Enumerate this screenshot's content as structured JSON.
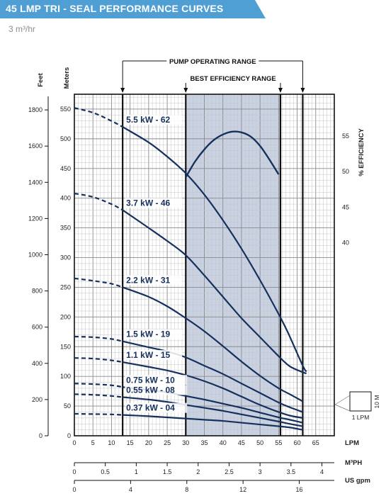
{
  "header": {
    "title": "45 LMP TRI - SEAL PERFORMANCE CURVES",
    "subtitle": "3 m³/hr",
    "banner_color": "#4f9fd4"
  },
  "chart_data": {
    "type": "line",
    "x_unit": "LPM",
    "xlim": [
      0,
      70
    ],
    "x_ticks": [
      0,
      5,
      10,
      15,
      20,
      25,
      30,
      35,
      40,
      45,
      50,
      55,
      60,
      65
    ],
    "secondary_x_axes": [
      {
        "unit": "M³PH",
        "ticks": [
          0,
          0.5,
          1,
          1.5,
          2,
          2.5,
          3,
          3.5,
          4
        ],
        "tick_labels": [
          "0",
          "0.5",
          "1",
          "1.5",
          "2",
          "2.5",
          "3",
          "3.5",
          "4"
        ]
      },
      {
        "unit": "US gpm",
        "ticks": [
          0,
          4,
          8,
          12,
          16
        ],
        "tick_labels": [
          "0",
          "4",
          "8",
          "12",
          "16"
        ]
      }
    ],
    "y_unit": "Meters",
    "ylim": [
      0,
      575
    ],
    "y_ticks": [
      0,
      50,
      100,
      150,
      200,
      250,
      300,
      350,
      400,
      450,
      500,
      550
    ],
    "secondary_y_axis": {
      "unit": "Feet",
      "ticks": [
        0,
        200,
        400,
        600,
        800,
        1000,
        1200,
        1400,
        1600,
        1800
      ]
    },
    "efficiency_axis": {
      "label": "% EFFICIENCY",
      "ticks": [
        40,
        45,
        50,
        55
      ]
    },
    "pump_operating_range": {
      "label": "PUMP OPERATING RANGE",
      "x": [
        13,
        61.5
      ]
    },
    "best_efficiency_range": {
      "label": "BEST EFFICIENCY RANGE",
      "x": [
        30,
        55.5
      ]
    },
    "grid": true,
    "curve_color": "#16305e",
    "band_color": "#c9d2e2",
    "series": [
      {
        "name": "5.5 kW - 62",
        "x": [
          0,
          5,
          10,
          13,
          20,
          25,
          30,
          35,
          40,
          45,
          50,
          55,
          57.5,
          61.5,
          62.5
        ],
        "y": [
          552,
          544,
          530,
          520,
          494,
          470,
          442,
          406,
          363,
          315,
          262,
          205,
          174,
          118,
          108
        ]
      },
      {
        "name": "3.7 kW - 46",
        "x": [
          0,
          5,
          10,
          13,
          20,
          25,
          30,
          35,
          40,
          45,
          50,
          55,
          58,
          61.5,
          62.5
        ],
        "y": [
          408,
          402,
          390,
          380,
          350,
          328,
          304,
          270,
          234,
          198,
          166,
          134,
          117,
          107,
          105
        ]
      },
      {
        "name": "2.2 kW - 31",
        "x": [
          0,
          5,
          10,
          13,
          20,
          25,
          30,
          35,
          40,
          45,
          50,
          55,
          58,
          61.5
        ],
        "y": [
          265,
          261,
          256,
          250,
          234,
          218,
          198,
          176,
          151,
          125,
          101,
          80,
          70,
          58
        ]
      },
      {
        "name": "1.5 kW - 19",
        "x": [
          0,
          5,
          10,
          13,
          20,
          25,
          30,
          35,
          40,
          45,
          50,
          55,
          58,
          61.5
        ],
        "y": [
          167,
          166,
          163,
          159,
          149,
          142,
          132,
          118,
          104,
          88,
          72,
          56,
          48,
          40
        ]
      },
      {
        "name": "1.1 kW - 15",
        "x": [
          0,
          5,
          10,
          13,
          20,
          25,
          30,
          35,
          40,
          45,
          50,
          55,
          58,
          61.5
        ],
        "y": [
          131,
          130,
          127,
          124,
          116,
          110,
          102,
          92,
          80,
          66,
          52,
          40,
          34,
          30
        ]
      },
      {
        "name": "0.75 kW - 10",
        "x": [
          0,
          5,
          10,
          13,
          20,
          25,
          30,
          35,
          40,
          45,
          50,
          55,
          58,
          61.5
        ],
        "y": [
          88,
          87,
          85,
          82,
          77,
          73,
          67,
          61,
          54,
          47,
          39,
          31,
          27,
          22
        ]
      },
      {
        "name": "0.55 kW - 08",
        "x": [
          0,
          5,
          10,
          13,
          20,
          25,
          30,
          35,
          40,
          45,
          50,
          55,
          58,
          61.5
        ],
        "y": [
          70,
          69,
          67,
          65,
          61,
          57,
          52,
          47,
          42,
          36,
          30,
          24,
          20,
          16
        ]
      },
      {
        "name": "0.37 kW - 04",
        "x": [
          0,
          5,
          10,
          13,
          20,
          25,
          30,
          35,
          40,
          45,
          50,
          55,
          58,
          61.5
        ],
        "y": [
          37,
          36.5,
          36,
          35,
          33,
          31,
          29,
          27,
          25,
          22,
          19,
          16,
          14,
          10
        ]
      }
    ],
    "efficiency_curve": {
      "x": [
        30,
        32.5,
        35,
        37.5,
        40,
        42.5,
        45,
        47.5,
        50,
        52.5,
        55
      ],
      "efficiency": [
        49.2,
        51.4,
        53.1,
        54.4,
        55.2,
        55.6,
        55.5,
        54.9,
        53.6,
        51.7,
        49.6
      ]
    },
    "scale_key": {
      "x_label": "1 LPM",
      "y_label": "10 M"
    }
  }
}
